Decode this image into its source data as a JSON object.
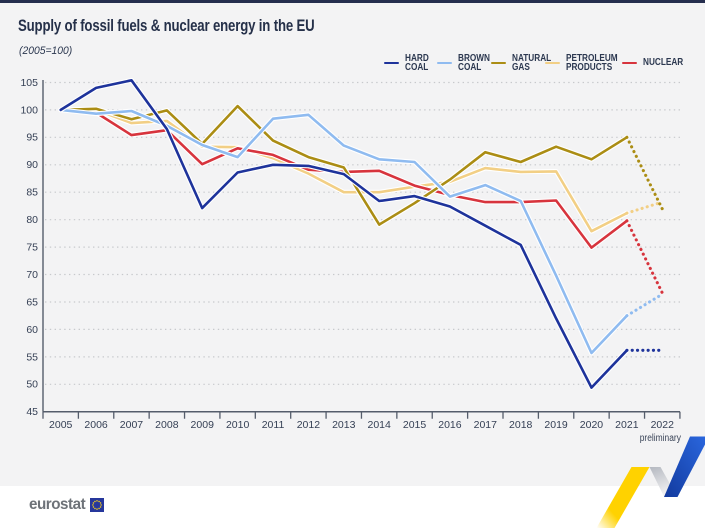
{
  "title": "Supply of fossil fuels & nuclear energy in the EU",
  "subtitle": "(2005=100)",
  "preliminary_note": "preliminary",
  "footer": {
    "logo_text": "eurostat"
  },
  "colors": {
    "background": "#f3f3f4",
    "top_bar": "#252e4e",
    "text_dark": "#253049",
    "grid": "#c7c9cc",
    "axis": "#555d6b",
    "hard_coal": "#1e339b",
    "brown_coal": "#8fbbf0",
    "natural_gas": "#ab8d14",
    "petroleum_products": "#f2cf85",
    "nuclear": "#d7343d",
    "logo_gray": "#6d7278",
    "eu_flag_blue": "#26379c",
    "eu_flag_stars": "#ffd617",
    "ribbon_yellow": "#ffd200",
    "ribbon_blue": "#1b54c8",
    "ribbon_gray": "#c3c6cd"
  },
  "chart_data": {
    "type": "line",
    "title": "Supply of fossil fuels & nuclear energy in the EU",
    "subtitle": "(2005=100)",
    "x": [
      2005,
      2006,
      2007,
      2008,
      2009,
      2010,
      2011,
      2012,
      2013,
      2014,
      2015,
      2016,
      2017,
      2018,
      2019,
      2020,
      2021,
      2022
    ],
    "x_last_note": "preliminary",
    "ylim": [
      45,
      105
    ],
    "ytick_step": 5,
    "grid": "horizontal-dotted",
    "legend_position": "top-right",
    "final_segment_style": "dotted (2021 to 2022 preliminary)",
    "series": [
      {
        "name": "HARD COAL",
        "color": "#1e339b",
        "values": [
          100,
          104.0,
          105.4,
          96.5,
          82.1,
          88.6,
          90.0,
          89.8,
          88.3,
          83.4,
          84.3,
          82.4,
          78.9,
          75.4,
          62.0,
          49.4,
          56.2,
          56.2
        ]
      },
      {
        "name": "BROWN COAL",
        "color": "#8fbbf0",
        "values": [
          100,
          99.3,
          99.8,
          97.1,
          93.6,
          91.4,
          98.4,
          99.1,
          93.5,
          91.0,
          90.5,
          84.2,
          86.3,
          83.4,
          69.8,
          55.7,
          62.5,
          66.4
        ]
      },
      {
        "name": "NATURAL GAS",
        "color": "#ab8d14",
        "values": [
          100,
          100.2,
          98.3,
          99.9,
          93.8,
          100.7,
          94.4,
          91.4,
          89.5,
          79.1,
          83.0,
          87.3,
          92.3,
          90.5,
          93.3,
          91.0,
          95.0,
          82.0
        ]
      },
      {
        "name": "PETROLEUM PRODUCTS",
        "color": "#f2cf85",
        "values": [
          100,
          100.0,
          97.6,
          98.0,
          93.3,
          93.2,
          91.2,
          88.4,
          85.0,
          85.0,
          86.0,
          86.9,
          89.4,
          88.7,
          88.8,
          77.9,
          81.2,
          83.2
        ]
      },
      {
        "name": "NUCLEAR",
        "color": "#d7343d",
        "values": [
          100,
          99.5,
          95.4,
          96.3,
          90.1,
          93.0,
          91.8,
          89.1,
          88.7,
          88.9,
          86.2,
          84.5,
          83.2,
          83.2,
          83.5,
          74.9,
          79.8,
          66.7
        ]
      }
    ]
  }
}
